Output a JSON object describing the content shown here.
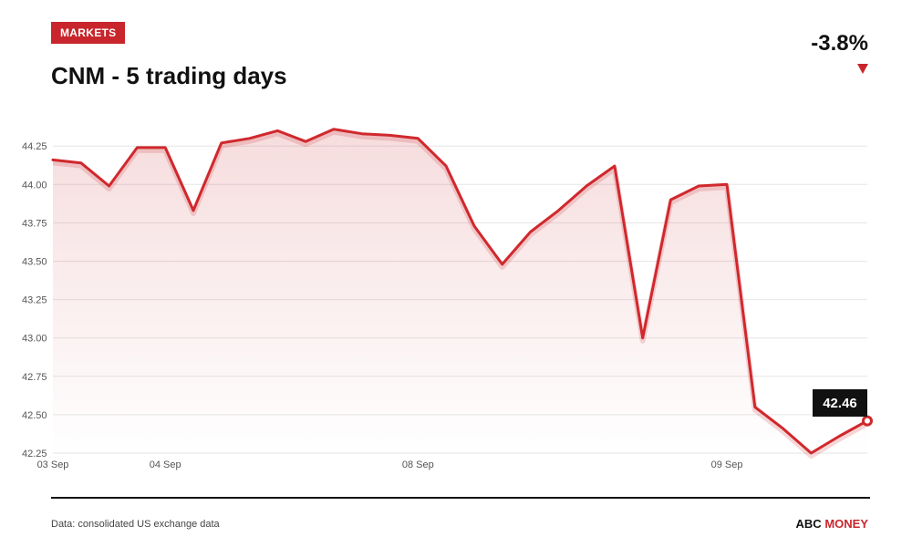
{
  "header": {
    "badge": "MARKETS",
    "title": "CNM - 5 trading days",
    "change": "-3.8%"
  },
  "footer": {
    "source": "Data: consolidated US exchange data",
    "brand_abc": "ABC",
    "brand_money": "MONEY"
  },
  "colors": {
    "accent": "#c8262c",
    "line": "#d0282d",
    "text": "#111111",
    "grid": "#e6e6e6"
  },
  "chart_data": {
    "type": "area",
    "ylim": [
      42.25,
      44.37
    ],
    "y_ticks": [
      "42.25",
      "42.50",
      "42.75",
      "43.00",
      "43.25",
      "43.50",
      "43.75",
      "44.00",
      "44.25"
    ],
    "x_ticks": [
      {
        "label": "03 Sep",
        "index": 0
      },
      {
        "label": "04 Sep",
        "index": 4
      },
      {
        "label": "08 Sep",
        "index": 13
      },
      {
        "label": "09 Sep",
        "index": 24
      }
    ],
    "grid": true,
    "last_value_label": "42.46",
    "series": [
      {
        "values": [
          44.16,
          44.14,
          43.99,
          44.24,
          44.24,
          43.83,
          44.27,
          44.3,
          44.35,
          44.28,
          44.36,
          44.33,
          44.32,
          44.3,
          44.12,
          43.73,
          43.48,
          43.69,
          43.83,
          43.99,
          44.12,
          43.0,
          43.9,
          43.99,
          44.0,
          42.55,
          42.41,
          42.25,
          42.36,
          42.46
        ]
      }
    ]
  }
}
